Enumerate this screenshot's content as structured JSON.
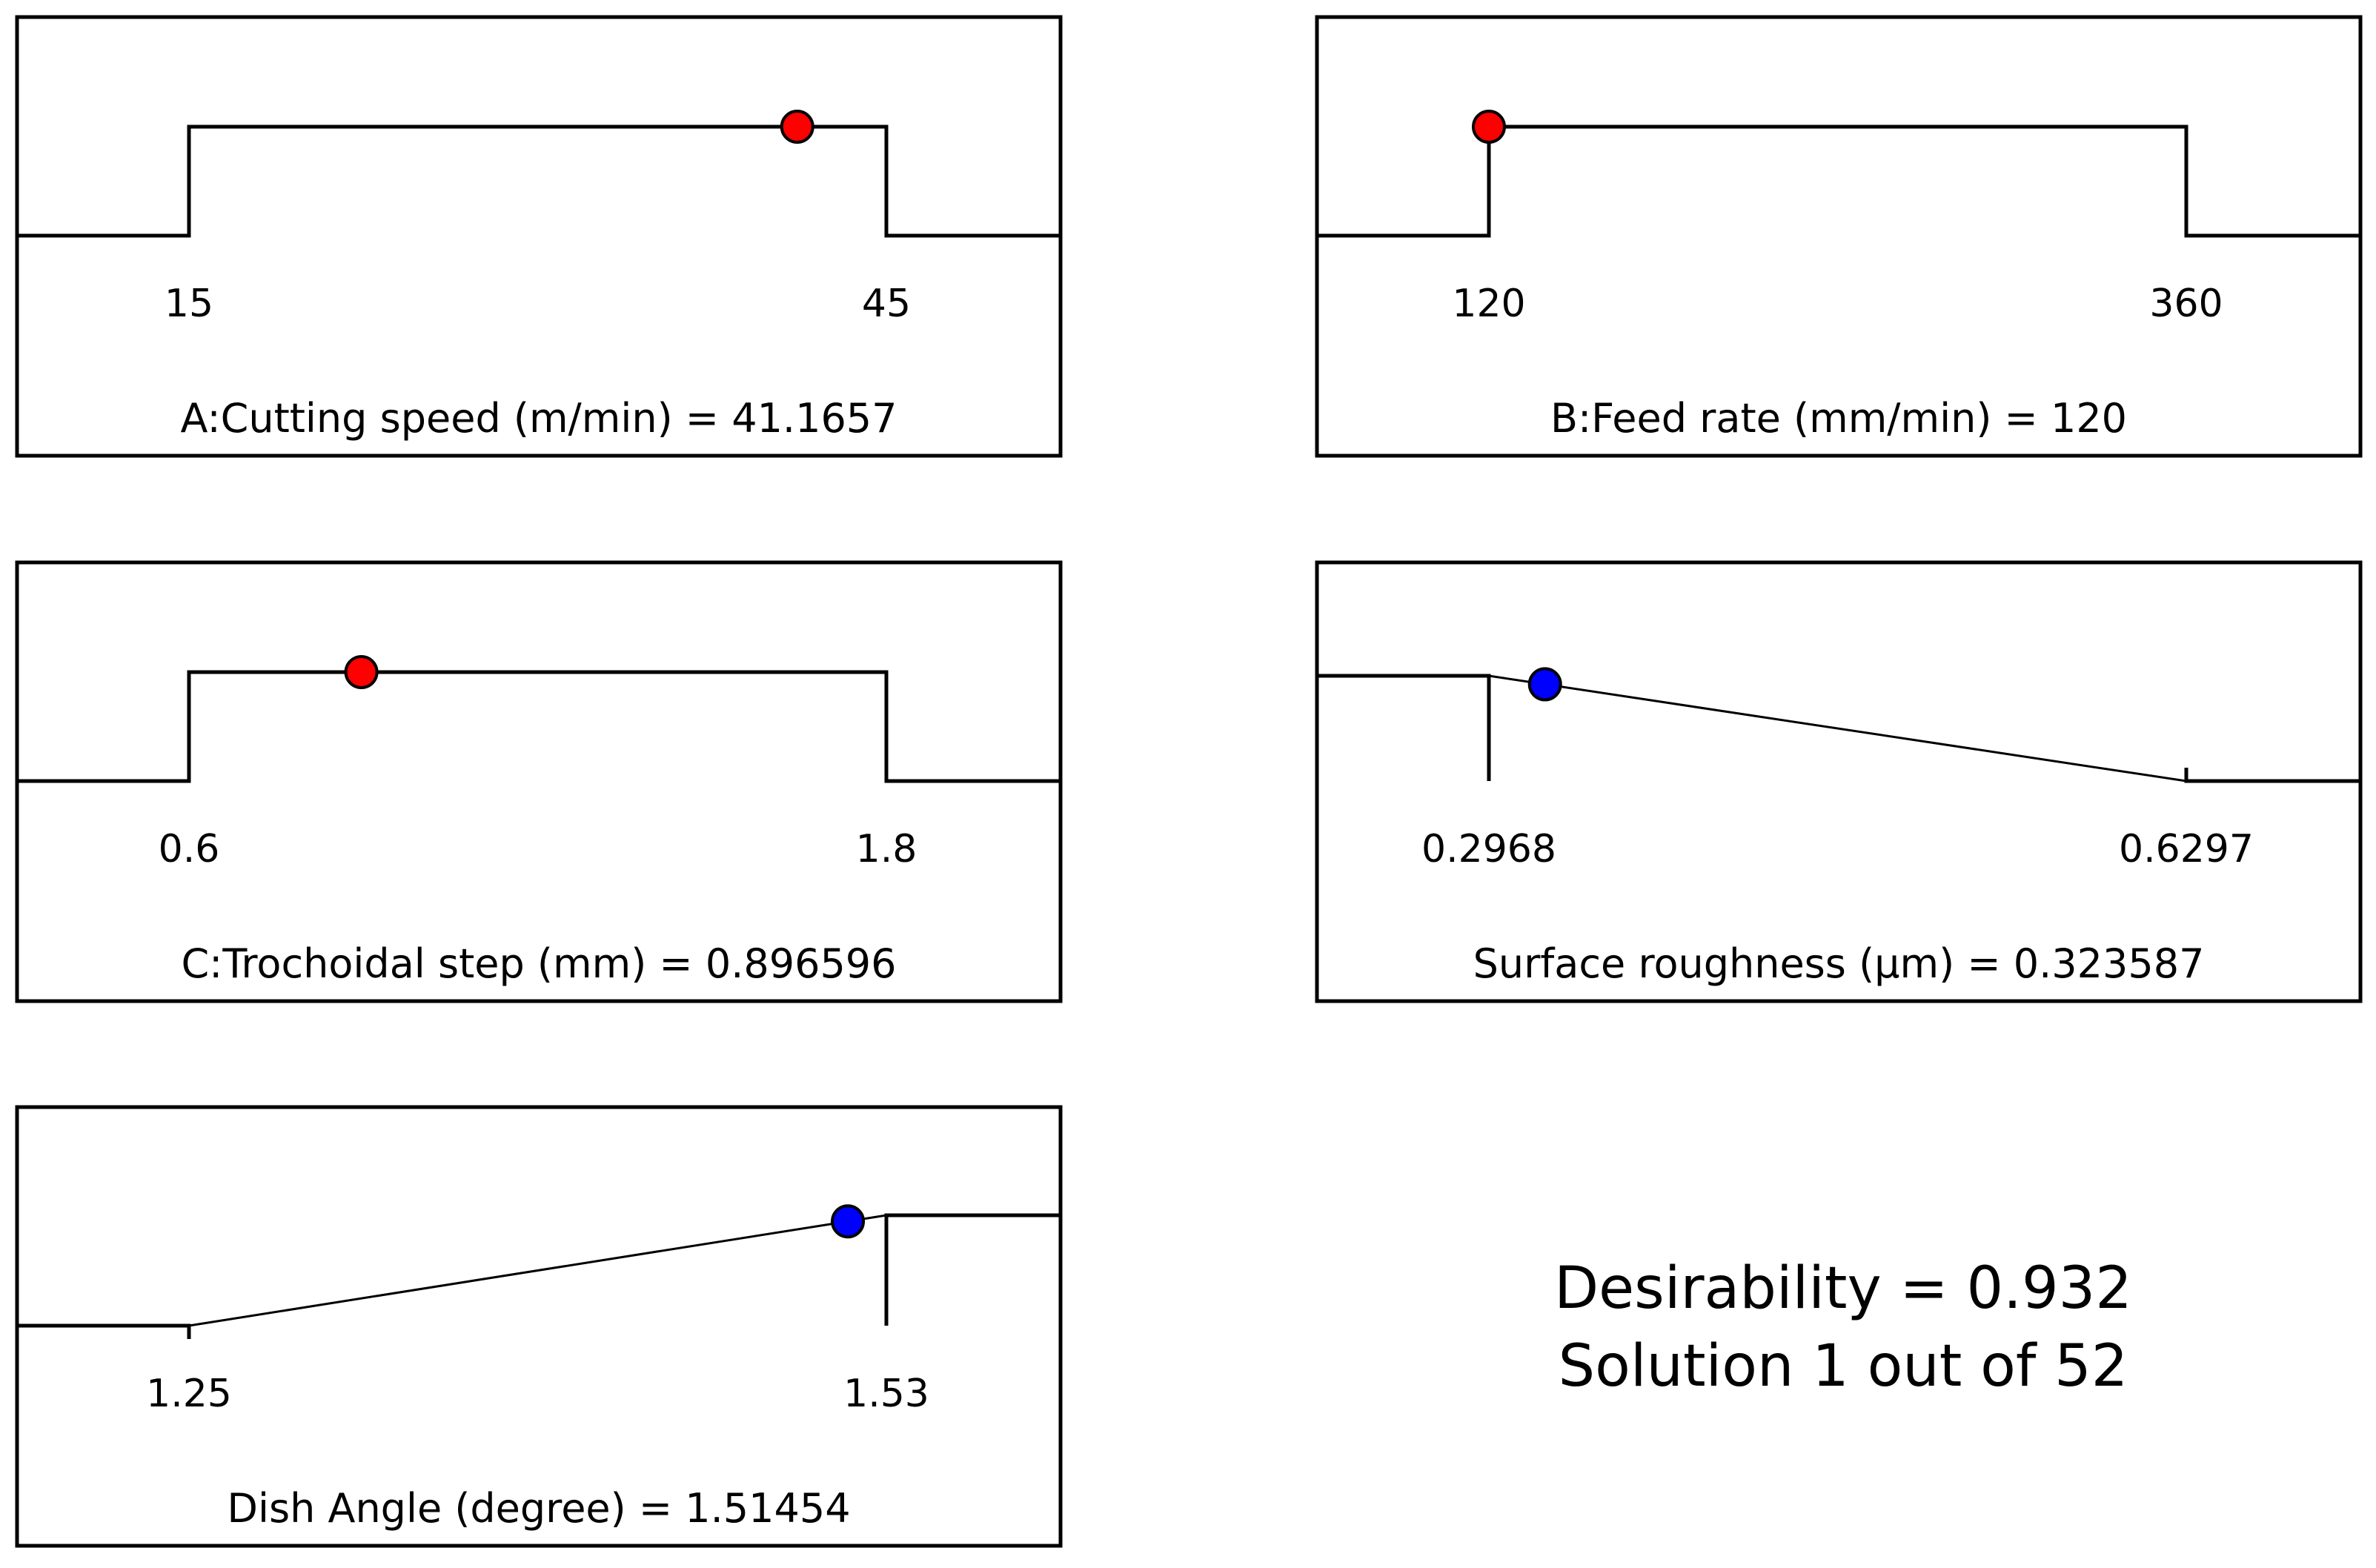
{
  "chart_data": [
    {
      "type": "desirability-ramp",
      "factor": "A:Cutting speed (m/min)",
      "label": "A:Cutting speed (m/min) = 41.1657",
      "goal": "in range",
      "low": 15,
      "high": 45,
      "low_label": "15",
      "high_label": "45",
      "value": 41.1657,
      "marker_color": "#ff0000"
    },
    {
      "type": "desirability-ramp",
      "factor": "B:Feed rate (mm/min)",
      "label": "B:Feed rate (mm/min) = 120",
      "goal": "in range",
      "low": 120,
      "high": 360,
      "low_label": "120",
      "high_label": "360",
      "value": 120,
      "marker_color": "#ff0000"
    },
    {
      "type": "desirability-ramp",
      "factor": "C:Trochoidal step (mm)",
      "label": "C:Trochoidal step (mm)  = 0.896596",
      "goal": "in range",
      "low": 0.6,
      "high": 1.8,
      "low_label": "0.6",
      "high_label": "1.8",
      "value": 0.896596,
      "marker_color": "#ff0000"
    },
    {
      "type": "desirability-ramp",
      "factor": "Surface roughness (µm)",
      "label": "Surface roughness (µm) = 0.323587",
      "goal": "minimize",
      "low": 0.2968,
      "high": 0.6297,
      "low_label": "0.2968",
      "high_label": "0.6297",
      "value": 0.323587,
      "marker_color": "#0000ff"
    },
    {
      "type": "desirability-ramp",
      "factor": "Dish Angle (degree)",
      "label": "Dish Angle (degree) = 1.51454",
      "goal": "maximize",
      "low": 1.25,
      "high": 1.53,
      "low_label": "1.25",
      "high_label": "1.53",
      "value": 1.51454,
      "marker_color": "#0000ff"
    }
  ],
  "summary": {
    "desirability": "Desirability = 0.932",
    "solution": "Solution 1 out of 52"
  }
}
